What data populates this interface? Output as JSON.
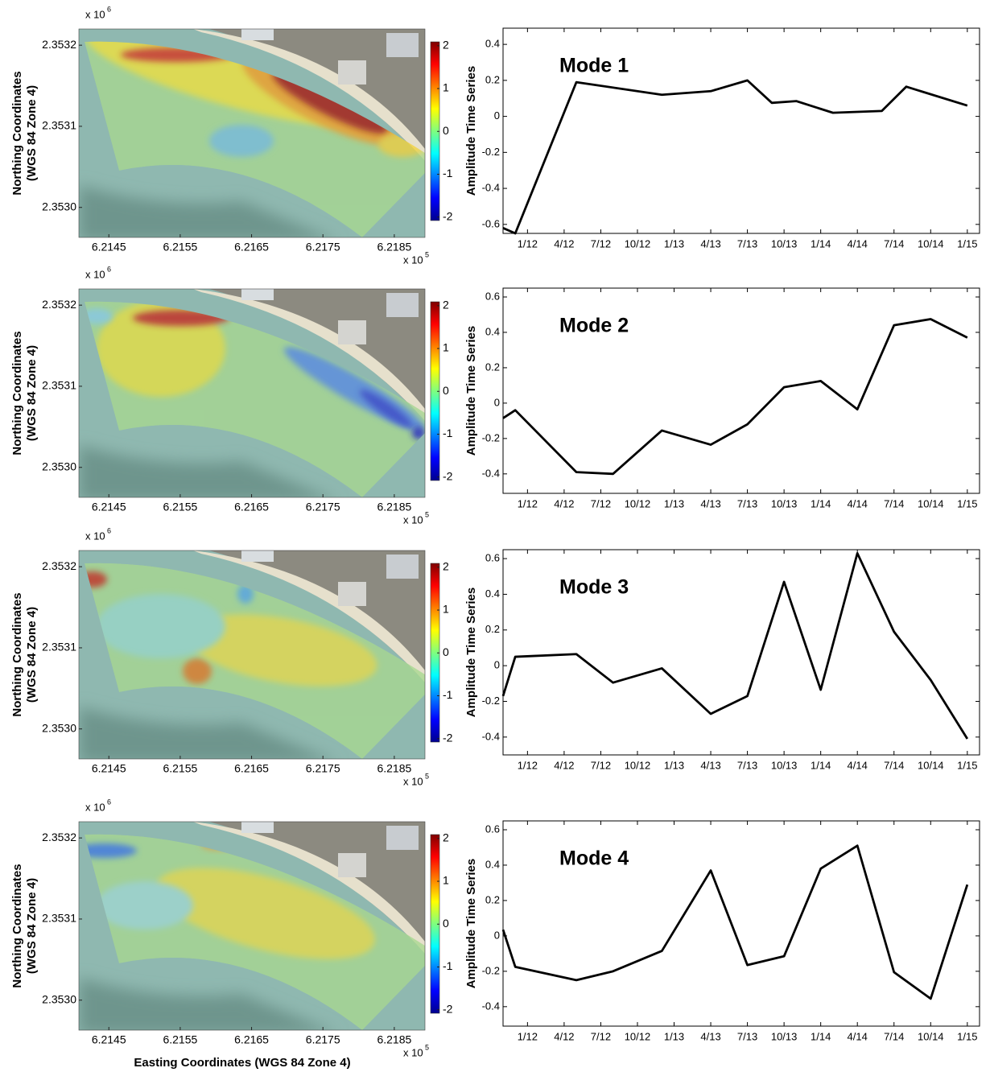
{
  "chart_data": [
    {
      "type": "map",
      "xlim": [
        6.21408,
        6.21893
      ],
      "xticks": [
        6.2145,
        6.2155,
        6.2165,
        6.2175,
        6.2185
      ],
      "x_multiplier": "x 10",
      "x_exponent": "5",
      "ylim": [
        2.352963,
        2.35322
      ],
      "yticks": [
        {
          "value": 2.353,
          "label": "2.3530"
        },
        2.3531,
        2.3532
      ],
      "y_multiplier": "x 10",
      "y_exponent": "6",
      "y_label": [
        "Northing Coordinates",
        "(WGS 84 Zone 4)"
      ],
      "colorbar": {
        "lim": [
          -2.08,
          2.09
        ],
        "ticks": [
          -2,
          -1,
          0,
          1,
          2
        ]
      }
    },
    {
      "type": "line",
      "annotation": "Mode 1",
      "annotation_color": "#2e2a7d",
      "y_label": "Amplitude Time Series",
      "color": "#000000",
      "x": [
        "11/11",
        "12/11",
        "5/12",
        "12/12",
        "4/13",
        "7/13",
        "9/13",
        "11/13",
        "2/14",
        "6/14",
        "8/14",
        "1/15"
      ],
      "values": [
        -0.62,
        -0.65,
        0.19,
        0.12,
        0.14,
        0.2,
        0.075,
        0.085,
        0.02,
        0.03,
        0.165,
        0.06
      ],
      "xlim": [
        "11/11",
        "2/15"
      ],
      "xticks": [
        "1/12",
        "4/12",
        "7/12",
        "10/12",
        "1/13",
        "4/13",
        "7/13",
        "10/13",
        "1/14",
        "4/14",
        "7/14",
        "10/14",
        "1/15"
      ],
      "ylim": [
        -0.65,
        0.49
      ],
      "yticks": [
        -0.6,
        -0.4,
        -0.2,
        0,
        0.2,
        0.4
      ]
    },
    {
      "type": "map",
      "xlim": [
        6.21408,
        6.21893
      ],
      "xticks": [
        6.2145,
        6.2155,
        6.2165,
        6.2175,
        6.2185
      ],
      "x_multiplier": "x 10",
      "x_exponent": "5",
      "ylim": [
        2.352963,
        2.35322
      ],
      "yticks": [
        {
          "value": 2.353,
          "label": "2.3530"
        },
        2.3531,
        2.3532
      ],
      "y_multiplier": "x 10",
      "y_exponent": "6",
      "y_label": [
        "Northing Coordinates",
        "(WGS 84 Zone 4)"
      ],
      "colorbar": {
        "lim": [
          -2.08,
          2.09
        ],
        "ticks": [
          -2,
          -1,
          0,
          1,
          2
        ]
      }
    },
    {
      "type": "line",
      "annotation": "Mode 2",
      "annotation_color": "#2e2a7d",
      "y_label": "Amplitude Time Series",
      "color": "#000000",
      "x": [
        "11/11",
        "12/11",
        "5/12",
        "8/12",
        "12/12",
        "4/13",
        "7/13",
        "10/13",
        "1/14",
        "4/14",
        "7/14",
        "10/14",
        "1/15"
      ],
      "values": [
        -0.085,
        -0.04,
        -0.39,
        -0.4,
        -0.155,
        -0.235,
        -0.12,
        0.09,
        0.125,
        -0.035,
        0.44,
        0.475,
        0.37
      ],
      "xlim": [
        "11/11",
        "2/15"
      ],
      "xticks": [
        "1/12",
        "4/12",
        "7/12",
        "10/12",
        "1/13",
        "4/13",
        "7/13",
        "10/13",
        "1/14",
        "4/14",
        "7/14",
        "10/14",
        "1/15"
      ],
      "ylim": [
        -0.51,
        0.65
      ],
      "yticks": [
        -0.4,
        -0.2,
        0,
        0.2,
        0.4,
        0.6
      ]
    },
    {
      "type": "map",
      "xlim": [
        6.21408,
        6.21893
      ],
      "xticks": [
        6.2145,
        6.2155,
        6.2165,
        6.2175,
        6.2185
      ],
      "x_multiplier": "x 10",
      "x_exponent": "5",
      "ylim": [
        2.352963,
        2.35322
      ],
      "yticks": [
        {
          "value": 2.353,
          "label": "2.3530"
        },
        2.3531,
        2.3532
      ],
      "y_multiplier": "x 10",
      "y_exponent": "6",
      "y_label": [
        "Northing Coordinates",
        "(WGS 84 Zone 4)"
      ],
      "colorbar": {
        "lim": [
          -2.08,
          2.09
        ],
        "ticks": [
          -2,
          -1,
          0,
          1,
          2
        ]
      }
    },
    {
      "type": "line",
      "annotation": "Mode 3",
      "annotation_color": "#2e2a7d",
      "y_label": "Amplitude Time Series",
      "color": "#000000",
      "x": [
        "11/11",
        "12/11",
        "5/12",
        "8/12",
        "12/12",
        "4/13",
        "7/13",
        "10/13",
        "1/14",
        "4/14",
        "7/14",
        "10/14",
        "1/15"
      ],
      "values": [
        -0.17,
        0.05,
        0.065,
        -0.095,
        -0.015,
        -0.27,
        -0.17,
        0.47,
        -0.135,
        0.63,
        0.19,
        -0.08,
        -0.41
      ],
      "xlim": [
        "11/11",
        "2/15"
      ],
      "xticks": [
        "1/12",
        "4/12",
        "7/12",
        "10/12",
        "1/13",
        "4/13",
        "7/13",
        "10/13",
        "1/14",
        "4/14",
        "7/14",
        "10/14",
        "1/15"
      ],
      "ylim": [
        -0.5,
        0.65
      ],
      "yticks": [
        -0.4,
        -0.2,
        0,
        0.2,
        0.4,
        0.6
      ]
    },
    {
      "type": "map",
      "xlim": [
        6.21408,
        6.21893
      ],
      "xticks": [
        6.2145,
        6.2155,
        6.2165,
        6.2175,
        6.2185
      ],
      "x_multiplier": "x 10",
      "x_exponent": "5",
      "ylim": [
        2.352963,
        2.35322
      ],
      "yticks": [
        {
          "value": 2.353,
          "label": "2.3530"
        },
        2.3531,
        2.3532
      ],
      "y_multiplier": "x 10",
      "y_exponent": "6",
      "y_label": [
        "Northing Coordinates",
        "(WGS 84 Zone 4)"
      ],
      "x_label": "Easting Coordinates (WGS 84 Zone 4)",
      "colorbar": {
        "lim": [
          -2.08,
          2.09
        ],
        "ticks": [
          -2,
          -1,
          0,
          1,
          2
        ]
      }
    },
    {
      "type": "line",
      "annotation": "Mode 4",
      "annotation_color": "#2e2a7d",
      "y_label": "Amplitude Time Series",
      "color": "#000000",
      "x": [
        "11/11",
        "12/11",
        "5/12",
        "8/12",
        "12/12",
        "4/13",
        "7/13",
        "10/13",
        "1/14",
        "4/14",
        "7/14",
        "10/14",
        "1/15"
      ],
      "values": [
        0.035,
        -0.175,
        -0.25,
        -0.2,
        -0.085,
        0.37,
        -0.165,
        -0.115,
        0.38,
        0.51,
        -0.205,
        -0.355,
        0.29
      ],
      "xlim": [
        "11/11",
        "2/15"
      ],
      "xticks": [
        "1/12",
        "4/12",
        "7/12",
        "10/12",
        "1/13",
        "4/13",
        "7/13",
        "10/13",
        "1/14",
        "4/14",
        "7/14",
        "10/14",
        "1/15"
      ],
      "ylim": [
        -0.51,
        0.65
      ],
      "yticks": [
        -0.4,
        -0.2,
        0,
        0.2,
        0.4,
        0.6
      ]
    }
  ]
}
